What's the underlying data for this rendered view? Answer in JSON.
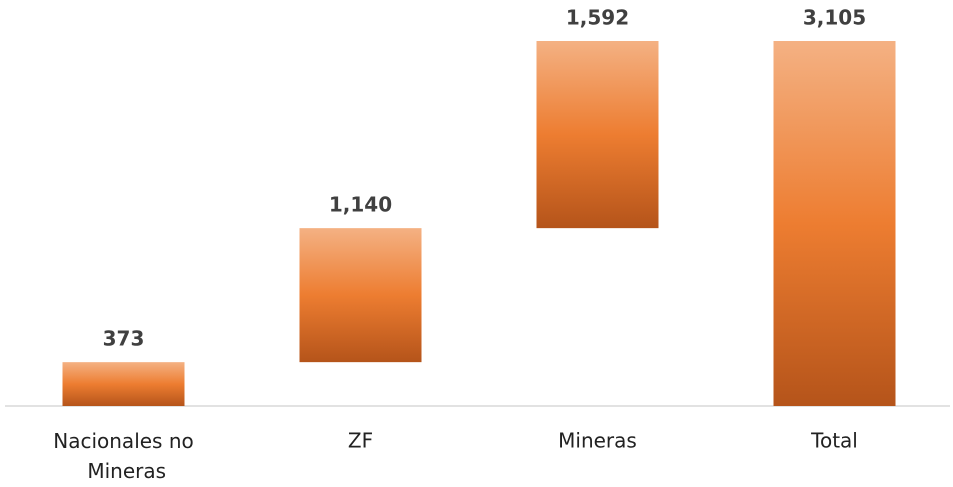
{
  "chart_data": {
    "type": "waterfall",
    "categories": [
      "Nacionales no Mineras",
      "ZF",
      "Mineras",
      "Total"
    ],
    "values": [
      373,
      1140,
      1592,
      3105
    ],
    "value_labels": [
      "373",
      "1,140",
      "1,592",
      "3,105"
    ],
    "color": "#ed7d31"
  }
}
